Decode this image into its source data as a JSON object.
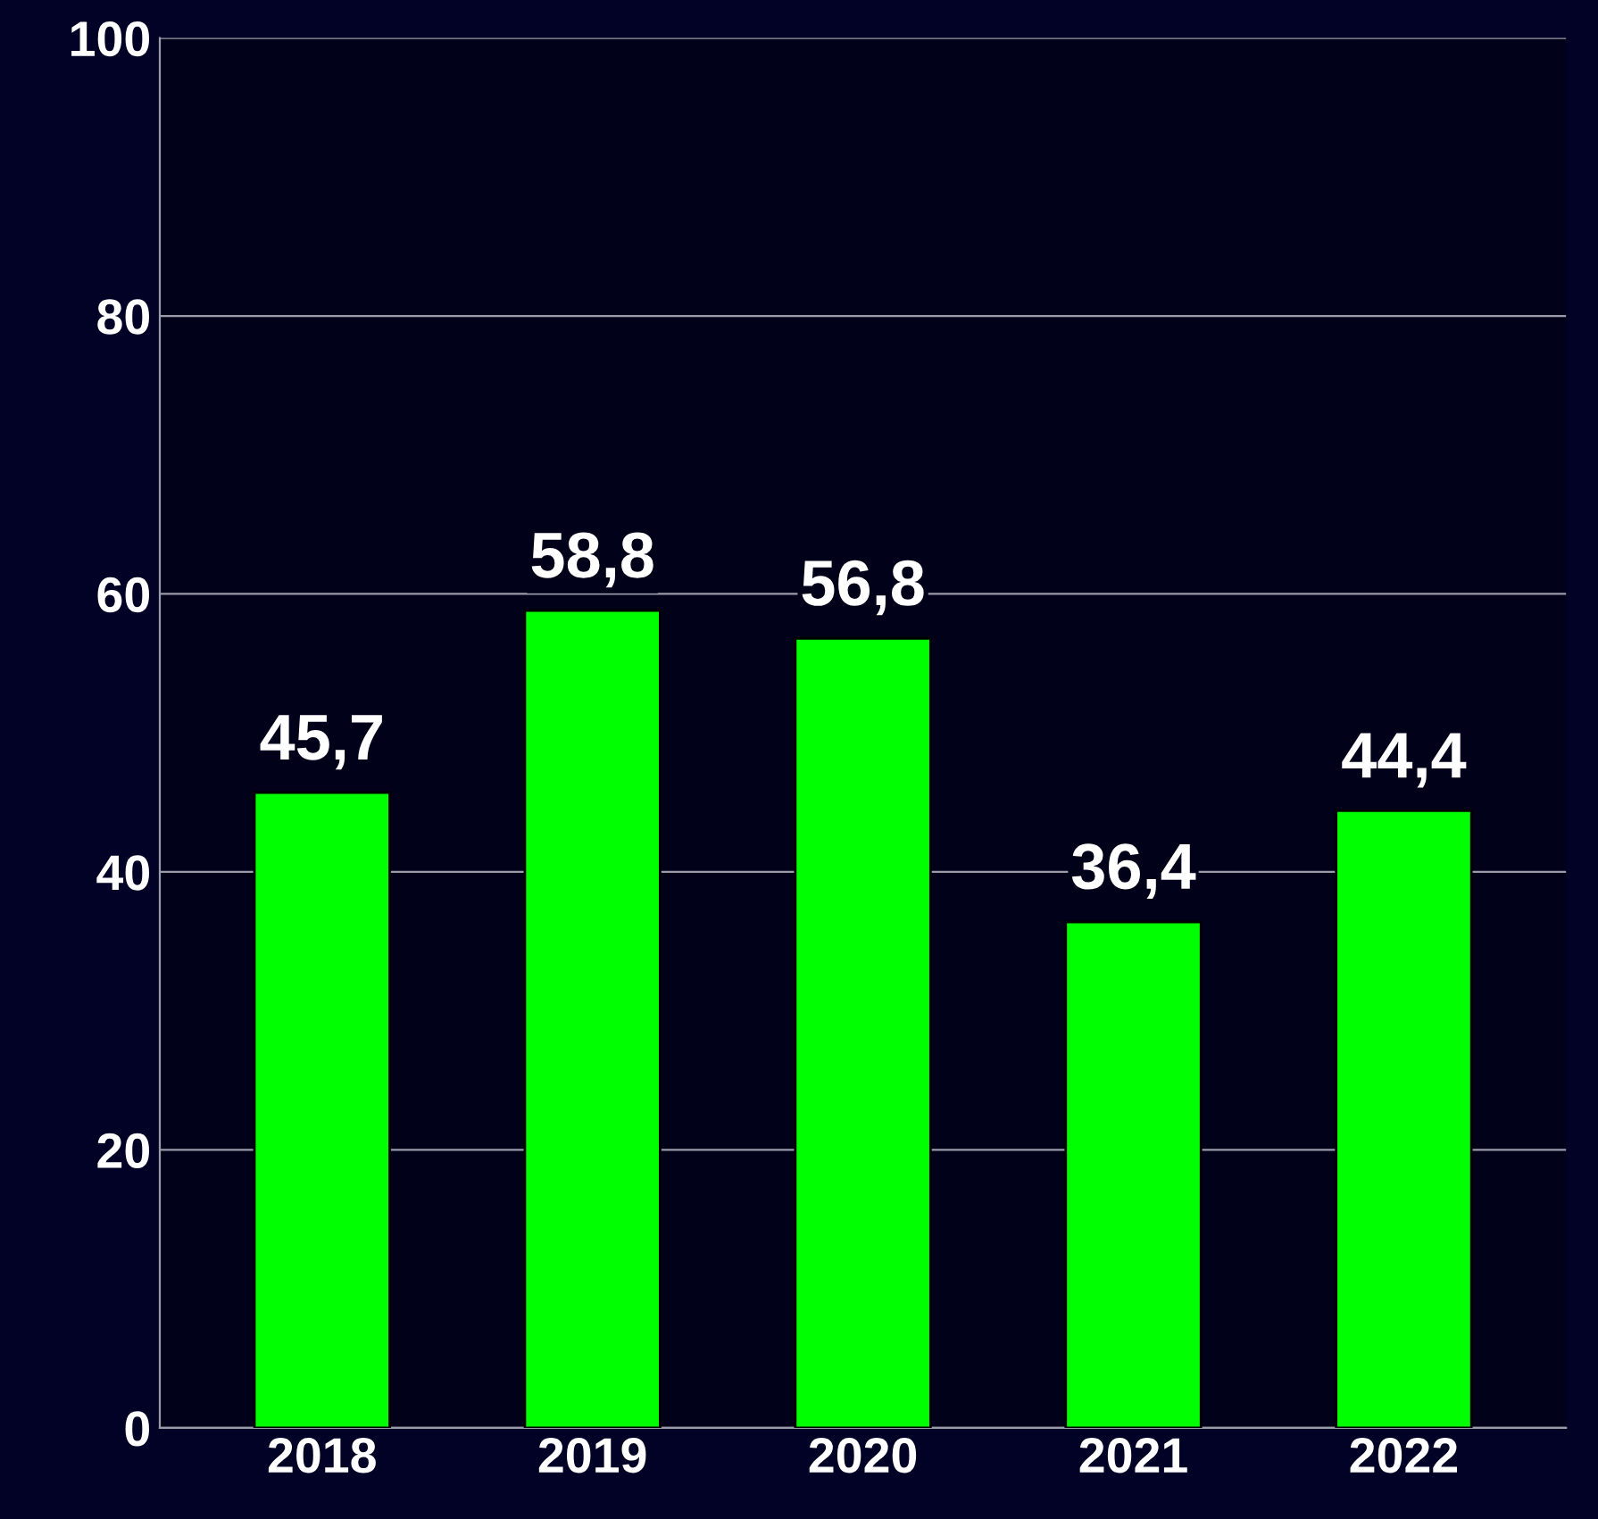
{
  "chart_data": {
    "type": "bar",
    "categories": [
      "2018",
      "2019",
      "2020",
      "2021",
      "2022"
    ],
    "values": [
      45.7,
      58.8,
      56.8,
      36.4,
      44.4
    ],
    "value_labels": [
      "45,7",
      "58,8",
      "56,8",
      "36,4",
      "44,4"
    ],
    "color": "#00ff00",
    "ylim": [
      0,
      100
    ],
    "yticks": [
      0,
      20,
      40,
      60,
      80,
      100
    ],
    "grid": "y",
    "legend": false
  }
}
